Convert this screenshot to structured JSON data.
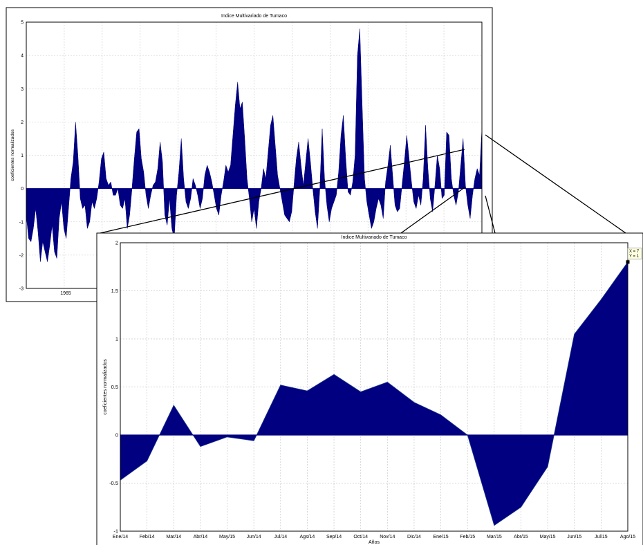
{
  "chart_data": [
    {
      "type": "area",
      "title": "Indice Multivariado de Tumaco",
      "ylabel": "coeficientes normalizados",
      "xlabel": "",
      "x_tick_labels": [
        "1965"
      ],
      "ylim": [
        -3,
        5
      ],
      "y_ticks": [
        -3,
        -2,
        -1,
        0,
        1,
        2,
        3,
        4,
        5
      ],
      "grid": true,
      "series": [
        {
          "color": "#000080",
          "values": [
            -0.8,
            -1.5,
            -1.6,
            -1.2,
            -0.6,
            -1.3,
            -2.2,
            -1.6,
            -1.9,
            -2.2,
            -1.7,
            -1.1,
            -1.9,
            -2.1,
            -0.9,
            -0.4,
            -1.2,
            -1.5,
            -0.6,
            0.3,
            0.8,
            2.0,
            1.0,
            -0.3,
            -0.6,
            -0.5,
            -1.2,
            -1.0,
            -0.4,
            -0.6,
            -0.3,
            0.2,
            0.9,
            1.1,
            0.3,
            0.1,
            0.2,
            -0.2,
            -0.2,
            0.0,
            -0.5,
            -0.6,
            -0.3,
            -1.2,
            -0.8,
            0.0,
            0.9,
            1.7,
            1.8,
            0.9,
            0.5,
            -0.2,
            -0.6,
            -0.2,
            0.1,
            0.2,
            0.6,
            1.4,
            0.8,
            -0.8,
            -1.1,
            -0.3,
            -1.2,
            -1.5,
            -0.2,
            0.5,
            1.5,
            0.3,
            -0.4,
            -0.6,
            -0.3,
            0.3,
            0.1,
            -0.2,
            -0.6,
            -0.3,
            0.4,
            0.7,
            0.5,
            0.2,
            -0.2,
            -0.6,
            -0.8,
            -0.2,
            0.2,
            0.7,
            0.5,
            0.7,
            1.6,
            2.5,
            3.2,
            2.4,
            2.6,
            1.5,
            0.3,
            -0.3,
            -1.0,
            -0.6,
            -1.2,
            -0.4,
            0.0,
            0.6,
            0.3,
            1.1,
            1.9,
            2.2,
            1.3,
            0.4,
            0.0,
            -0.4,
            -0.8,
            -0.9,
            -1.0,
            -0.7,
            0.1,
            0.9,
            1.4,
            0.7,
            0.1,
            0.8,
            1.5,
            0.8,
            0.0,
            -0.7,
            -1.2,
            0.0,
            1.8,
            0.3,
            -0.5,
            -1.0,
            -0.6,
            -0.4,
            -0.2,
            0.5,
            1.6,
            2.2,
            0.9,
            -0.1,
            -0.2,
            0.2,
            1.0,
            4.0,
            4.8,
            2.5,
            0.3,
            -0.4,
            -0.8,
            -1.2,
            -1.0,
            -0.6,
            -0.3,
            -0.5,
            -0.9,
            0.2,
            0.7,
            1.3,
            0.4,
            -0.5,
            -0.7,
            -0.6,
            0.1,
            0.8,
            1.6,
            0.9,
            0.2,
            -0.4,
            -0.6,
            -0.2,
            -0.5,
            0.3,
            1.9,
            0.6,
            -0.3,
            -0.7,
            0.1,
            1.0,
            0.6,
            -0.3,
            -0.2,
            1.7,
            1.6,
            0.3,
            -0.2,
            -0.5,
            -0.1,
            0.7,
            1.5,
            0.1,
            -0.5,
            -0.9,
            -0.2,
            0.3,
            0.6,
            0.4,
            1.8
          ]
        }
      ]
    },
    {
      "type": "area",
      "title": "Indice Multivariado de Tumaco",
      "xlabel": "Años",
      "ylabel": "coeficientes normalizados",
      "categories": [
        "Ene/14",
        "Feb/14",
        "Mar/14",
        "Abr/14",
        "May/15",
        "Jun/14",
        "Jul/14",
        "Ags/14",
        "Sep/14",
        "Oct/14",
        "Nov/14",
        "Dic/14",
        "Ene/15",
        "Feb/15",
        "Mar/15",
        "Abr/15",
        "May/15",
        "Jun/15",
        "Jul/15",
        "Ago/15"
      ],
      "ylim": [
        -1,
        2
      ],
      "y_ticks": [
        -1,
        -0.5,
        0,
        0.5,
        1,
        1.5,
        2
      ],
      "grid": true,
      "series": [
        {
          "color": "#000080",
          "values": [
            -0.47,
            -0.27,
            0.31,
            -0.12,
            -0.02,
            -0.06,
            0.52,
            0.46,
            0.63,
            0.45,
            0.55,
            0.34,
            0.21,
            0.0,
            -0.94,
            -0.75,
            -0.33,
            1.05,
            1.41,
            1.8
          ]
        }
      ],
      "datatip": {
        "lines": [
          "X = 7",
          "Y = 1"
        ]
      }
    }
  ]
}
